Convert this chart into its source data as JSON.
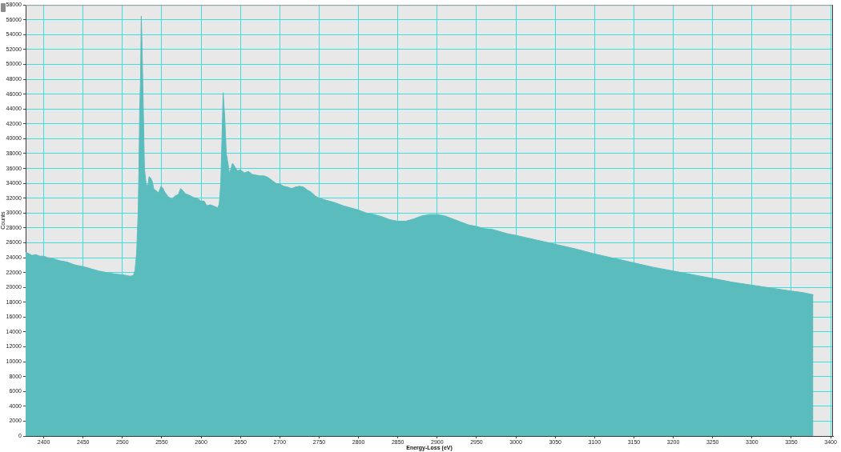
{
  "chart_data": {
    "type": "area",
    "xlabel": "Energy-Loss (eV)",
    "ylabel": "Counts",
    "xlim": [
      2377,
      3403
    ],
    "ylim": [
      0,
      58000
    ],
    "xticks": [
      2400,
      2450,
      2500,
      2550,
      2600,
      2650,
      2700,
      2750,
      2800,
      2850,
      2900,
      2950,
      3000,
      3050,
      3100,
      3150,
      3200,
      3250,
      3300,
      3350,
      3400
    ],
    "yticks": [
      0,
      2000,
      4000,
      6000,
      8000,
      10000,
      12000,
      14000,
      16000,
      18000,
      20000,
      22000,
      24000,
      26000,
      28000,
      30000,
      32000,
      34000,
      36000,
      38000,
      40000,
      42000,
      44000,
      46000,
      48000,
      50000,
      52000,
      54000,
      56000,
      58000
    ],
    "grid": true,
    "color": "#5bbcbd",
    "x": [
      2377,
      2380,
      2385,
      2390,
      2395,
      2400,
      2405,
      2410,
      2420,
      2430,
      2440,
      2450,
      2460,
      2470,
      2480,
      2490,
      2500,
      2510,
      2514,
      2516,
      2518,
      2520,
      2521,
      2522,
      2523,
      2524,
      2525,
      2526,
      2527,
      2528,
      2529,
      2530,
      2532,
      2534,
      2536,
      2538,
      2540,
      2543,
      2546,
      2549,
      2551,
      2554,
      2558,
      2563,
      2567,
      2571,
      2574,
      2577,
      2580,
      2585,
      2590,
      2595,
      2600,
      2604,
      2607,
      2612,
      2617,
      2621,
      2623,
      2625,
      2626,
      2627,
      2628,
      2629,
      2630,
      2631,
      2632,
      2634,
      2636,
      2638,
      2640,
      2643,
      2646,
      2650,
      2655,
      2660,
      2665,
      2670,
      2675,
      2680,
      2685,
      2690,
      2695,
      2700,
      2705,
      2710,
      2715,
      2720,
      2725,
      2730,
      2735,
      2740,
      2745,
      2750,
      2760,
      2770,
      2780,
      2790,
      2800,
      2810,
      2820,
      2830,
      2840,
      2850,
      2860,
      2870,
      2880,
      2890,
      2900,
      2910,
      2920,
      2930,
      2940,
      2950,
      2960,
      2970,
      2980,
      2990,
      3000,
      3025,
      3050,
      3075,
      3100,
      3125,
      3150,
      3175,
      3200,
      3225,
      3250,
      3275,
      3300,
      3325,
      3350,
      3365,
      3378
    ],
    "values": [
      24700,
      24600,
      24300,
      24400,
      24200,
      24200,
      24000,
      23900,
      23600,
      23400,
      23000,
      22800,
      22500,
      22200,
      22000,
      21800,
      21700,
      21500,
      21600,
      22300,
      24500,
      30000,
      36000,
      44000,
      48000,
      56500,
      52000,
      47000,
      41500,
      36000,
      35000,
      34000,
      33500,
      34900,
      34700,
      34200,
      33200,
      33000,
      32700,
      33600,
      33400,
      32800,
      32200,
      31900,
      32300,
      32500,
      33300,
      33000,
      32600,
      32400,
      32100,
      32000,
      31600,
      31600,
      31000,
      31100,
      30900,
      30700,
      31200,
      34000,
      38000,
      42000,
      46200,
      44500,
      43000,
      40500,
      38000,
      36800,
      35300,
      36000,
      36700,
      36200,
      35700,
      35800,
      35400,
      35600,
      35200,
      35100,
      35000,
      35000,
      34800,
      34400,
      34000,
      33900,
      33600,
      33500,
      33300,
      33500,
      33600,
      33500,
      33100,
      32800,
      32300,
      32000,
      31700,
      31400,
      31000,
      30700,
      30400,
      30000,
      29800,
      29500,
      29100,
      28900,
      28900,
      29200,
      29600,
      29800,
      29800,
      29600,
      29200,
      28800,
      28400,
      28200,
      27900,
      27800,
      27500,
      27200,
      27000,
      26400,
      25800,
      25200,
      24500,
      23900,
      23300,
      22700,
      22200,
      21700,
      21200,
      20700,
      20300,
      19900,
      19500,
      19300,
      19000
    ]
  }
}
